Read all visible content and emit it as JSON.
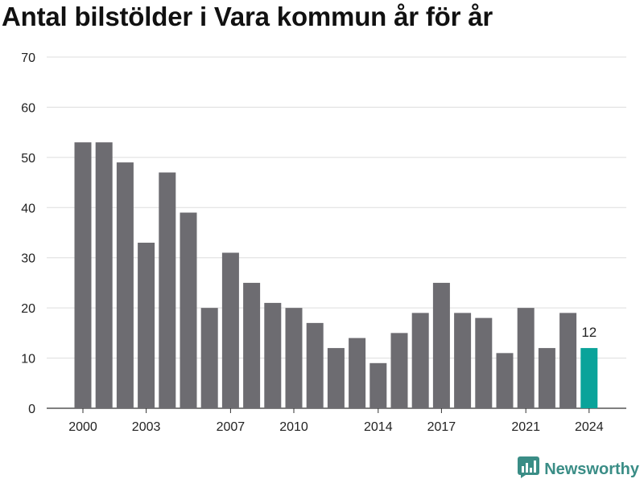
{
  "chart_data": {
    "type": "bar",
    "title": "Antal bilstölder i Vara kommun år för år",
    "xlabel": "",
    "ylabel": "",
    "categories": [
      "2000",
      "2001",
      "2002",
      "2003",
      "2004",
      "2005",
      "2006",
      "2007",
      "2008",
      "2009",
      "2010",
      "2011",
      "2012",
      "2013",
      "2014",
      "2015",
      "2016",
      "2017",
      "2018",
      "2019",
      "2020",
      "2021",
      "2022",
      "2023",
      "2024"
    ],
    "values": [
      53,
      53,
      49,
      33,
      47,
      39,
      20,
      31,
      25,
      21,
      20,
      17,
      12,
      14,
      9,
      15,
      19,
      25,
      19,
      18,
      11,
      20,
      12,
      19,
      12
    ],
    "x_tick_labels": [
      "2000",
      "2003",
      "2007",
      "2010",
      "2014",
      "2017",
      "2021",
      "2024"
    ],
    "y_ticks": [
      0,
      10,
      20,
      30,
      40,
      50,
      60,
      70
    ],
    "ylim": [
      0,
      70
    ],
    "grid": true,
    "bar_color": "#6d6c71",
    "highlight_color": "#0aa39a",
    "highlight_category": "2024",
    "annotations": [
      {
        "category": "2024",
        "text": "12"
      }
    ]
  },
  "brand": {
    "name": "Newsworthy",
    "color": "#3a8d86",
    "icon": "newsworthy-logo-icon"
  }
}
